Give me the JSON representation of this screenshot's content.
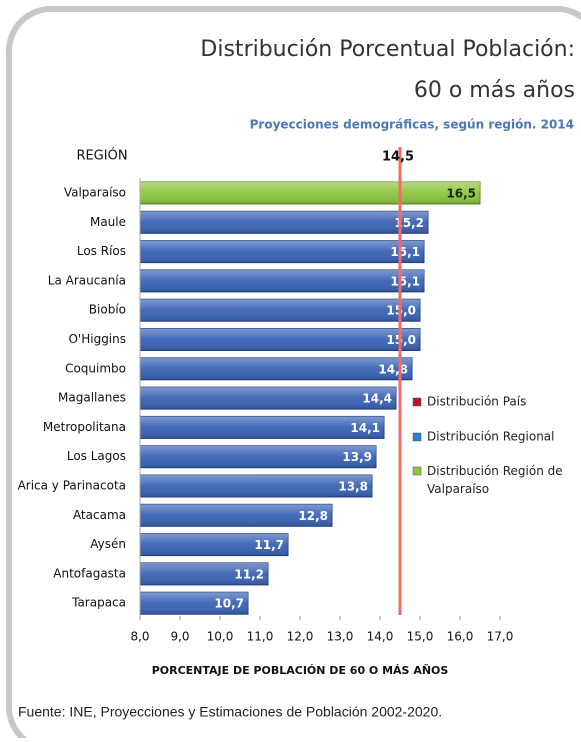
{
  "chart_data": {
    "type": "bar",
    "orientation": "horizontal",
    "title": [
      "Distribución Porcentual Población:",
      "60 o más años"
    ],
    "subtitle": "Proyecciones demográficas, según región. 2014",
    "category_axis_label": "REGIÓN",
    "x_axis_label": "PORCENTAJE DE POBLACIÓN DE 60 O MÁS AÑOS",
    "categories": [
      "Valparaíso",
      "Maule",
      "Los Ríos",
      "La Araucanía",
      "Biobío",
      "O'Higgins",
      "Coquimbo",
      "Magallanes",
      "Metropolitana",
      "Los Lagos",
      "Arica y Parinacota",
      "Atacama",
      "Aysén",
      "Antofagasta",
      "Tarapaca"
    ],
    "values": [
      16.5,
      15.2,
      15.1,
      15.1,
      15.0,
      15.0,
      14.8,
      14.4,
      14.1,
      13.9,
      13.8,
      12.8,
      11.7,
      11.2,
      10.7
    ],
    "value_labels": [
      "16,5",
      "15,2",
      "15,1",
      "15,1",
      "15,0",
      "15,0",
      "14,8",
      "14,4",
      "14,1",
      "13,9",
      "13,8",
      "12,8",
      "11,7",
      "11,2",
      "10,7"
    ],
    "colors": [
      "#8cc63f",
      "#3a63b5",
      "#3a63b5",
      "#3a63b5",
      "#3a63b5",
      "#3a63b5",
      "#3a63b5",
      "#3a63b5",
      "#3a63b5",
      "#3a63b5",
      "#3a63b5",
      "#3a63b5",
      "#3a63b5",
      "#3a63b5",
      "#3a63b5"
    ],
    "xlim": [
      8.0,
      17.0
    ],
    "xticks": [
      {
        "value": 8.0,
        "label": "8,0"
      },
      {
        "value": 9.0,
        "label": "9,0"
      },
      {
        "value": 10.0,
        "label": "10,0"
      },
      {
        "value": 11.0,
        "label": "11,0"
      },
      {
        "value": 12.0,
        "label": "12,0"
      },
      {
        "value": 13.0,
        "label": "13,0"
      },
      {
        "value": 14.0,
        "label": "14,0"
      },
      {
        "value": 15.0,
        "label": "15,0"
      },
      {
        "value": 16.0,
        "label": "16,0"
      },
      {
        "value": 17.0,
        "label": "17,0"
      }
    ],
    "reference_line": {
      "value": 14.5,
      "label": "14,5",
      "color": "#f26b6b"
    },
    "legend": [
      {
        "name": "Distribución País",
        "color": "#c0141c"
      },
      {
        "name": "Distribución Regional",
        "color": "#2f7fd6"
      },
      {
        "name": "Distribución Región de Valparaíso",
        "color": "#8cc63f"
      }
    ],
    "source": "Fuente: INE, Proyecciones y Estimaciones de Población 2002-2020."
  }
}
